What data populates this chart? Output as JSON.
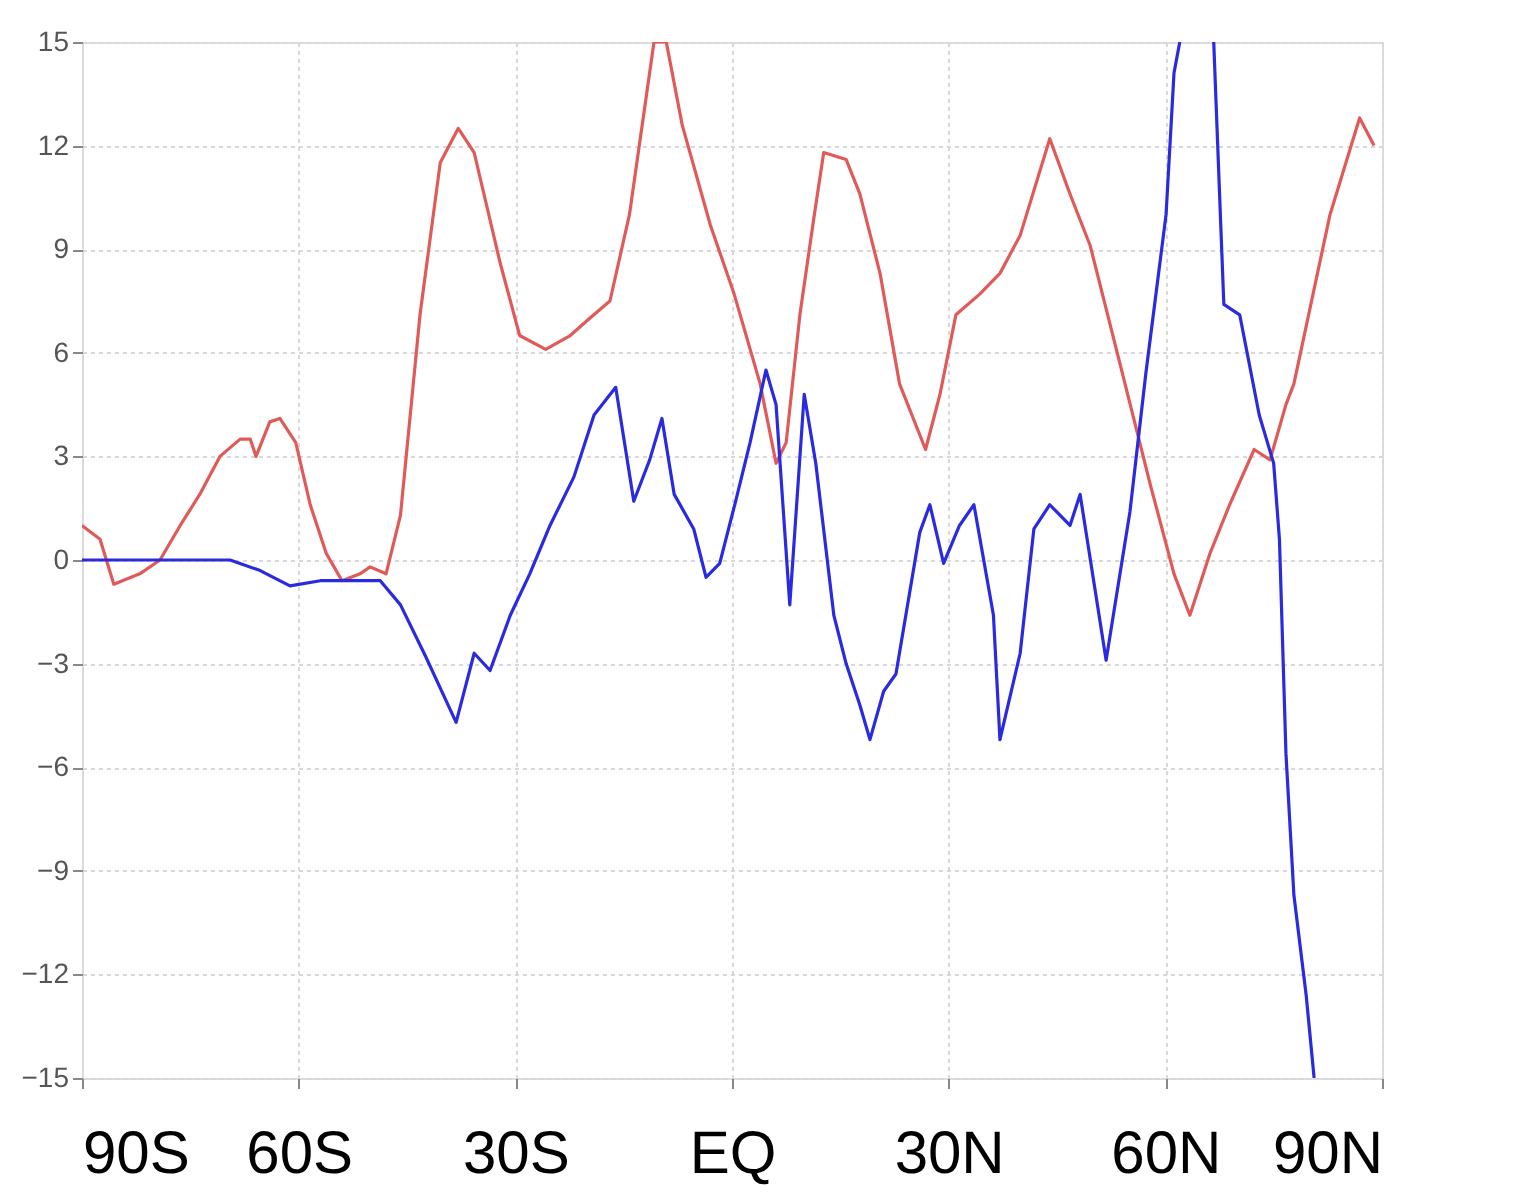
{
  "chart_data": {
    "type": "line",
    "xlim": [
      -90,
      90
    ],
    "xticks": [
      {
        "value": -90,
        "label": "90S"
      },
      {
        "value": -60,
        "label": "60S"
      },
      {
        "value": -30,
        "label": "30S"
      },
      {
        "value": 0,
        "label": "EQ"
      },
      {
        "value": 30,
        "label": "30N"
      },
      {
        "value": 60,
        "label": "60N"
      },
      {
        "value": 90,
        "label": "90N"
      }
    ],
    "ylim": [
      -15,
      15
    ],
    "yticks": [
      -15,
      -12,
      -9,
      -6,
      -3,
      0,
      3,
      6,
      9,
      12,
      15
    ],
    "grid": true,
    "legend": false,
    "line_style": "solid",
    "marker": "none",
    "series": [
      {
        "color": "#e05a5a",
        "x": [
          -90,
          -87.5,
          -85.6,
          -82,
          -79.2,
          -76.4,
          -73.7,
          -70.9,
          -68.1,
          -66.7,
          -65.9,
          -64,
          -62.6,
          -60.4,
          -58.4,
          -56.2,
          -54,
          -51.5,
          -50.1,
          -47.9,
          -45.9,
          -43.2,
          -40.4,
          -37.9,
          -35.7,
          -32.1,
          -29.4,
          -25.8,
          -22.4,
          -19.7,
          -16.9,
          -14.2,
          -10.8,
          -9.1,
          -6.9,
          -3,
          0.3,
          3.9,
          6.1,
          7.5,
          9.4,
          11.4,
          12.7,
          15.8,
          17.7,
          20.5,
          23.2,
          26.8,
          28.8,
          31,
          34.3,
          37.1,
          39.9,
          44,
          46.8,
          49.6,
          53.7,
          57.9,
          61.2,
          63.4,
          66.2,
          68.9,
          72.3,
          74.5,
          76.7,
          77.8,
          82.8,
          86.9,
          88.9
        ],
        "values": [
          1.0,
          0.6,
          -0.7,
          -0.4,
          0,
          1.0,
          1.9,
          3.0,
          3.5,
          3.5,
          3.0,
          4.0,
          4.1,
          3.4,
          1.6,
          0.2,
          -0.6,
          -0.4,
          -0.2,
          -0.4,
          1.3,
          7.1,
          11.5,
          12.5,
          11.8,
          8.6,
          6.5,
          6.1,
          6.5,
          7.0,
          7.5,
          10.0,
          15.0,
          15.0,
          12.6,
          9.7,
          7.7,
          5.1,
          2.8,
          3.4,
          7.1,
          10.0,
          11.8,
          11.6,
          10.6,
          8.3,
          5.1,
          3.2,
          4.8,
          7.1,
          7.7,
          8.3,
          9.4,
          12.2,
          10.6,
          9.1,
          5.7,
          2.2,
          -0.4,
          -1.6,
          0.2,
          1.6,
          3.2,
          2.9,
          4.5,
          5.1,
          10.0,
          12.8,
          12.0
        ]
      },
      {
        "color": "#2a2ae0",
        "x": [
          -90,
          -69.5,
          -65.4,
          -61.2,
          -57.0,
          -52.9,
          -48.7,
          -45.9,
          -42.4,
          -38.2,
          -35.7,
          -33.5,
          -30.7,
          -28,
          -25.2,
          -21.9,
          -19.1,
          -16.1,
          -13.6,
          -11.4,
          -9.7,
          -8,
          -5.3,
          -3.6,
          -1.7,
          0.5,
          2.5,
          4.7,
          6.1,
          8,
          10,
          11.6,
          14.1,
          15.8,
          17.7,
          19.1,
          21,
          22.7,
          26,
          27.4,
          29.3,
          31.5,
          33.5,
          36.2,
          37.1,
          39.9,
          41.8,
          44,
          46.8,
          48.2,
          51.8,
          55.1,
          57.3,
          60.1,
          61.2,
          62,
          64.3,
          66.7,
          68.1,
          70.3,
          73,
          75,
          75.8,
          76.7,
          77.8,
          79.5,
          80.6
        ],
        "values": [
          0,
          0,
          -0.3,
          -0.75,
          -0.6,
          -0.6,
          -0.6,
          -1.3,
          -2.8,
          -4.7,
          -2.7,
          -3.2,
          -1.6,
          -0.4,
          1.0,
          2.4,
          4.2,
          5.0,
          1.7,
          2.9,
          4.1,
          1.9,
          0.9,
          -0.5,
          -0.1,
          1.7,
          3.4,
          5.5,
          4.5,
          -1.3,
          4.8,
          2.8,
          -1.6,
          -3.0,
          -4.2,
          -5.2,
          -3.8,
          -3.3,
          0.8,
          1.6,
          -0.1,
          1.0,
          1.6,
          -1.6,
          -5.2,
          -2.7,
          0.9,
          1.6,
          1.0,
          1.9,
          -2.9,
          1.4,
          5.4,
          10.0,
          14.1,
          15,
          null,
          15,
          7.4,
          7.1,
          4.2,
          2.8,
          0.6,
          -5.6,
          -9.7,
          -12.6,
          -15
        ]
      }
    ]
  }
}
